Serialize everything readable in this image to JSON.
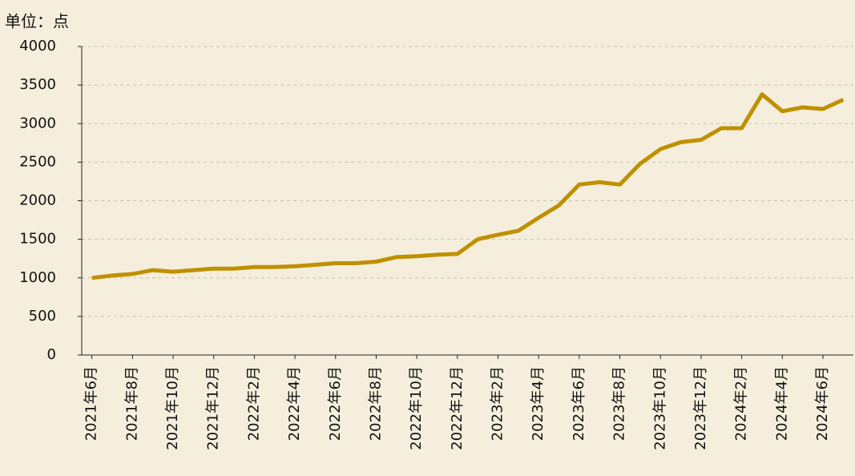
{
  "chart_data": {
    "type": "line",
    "unit_label": "单位：点",
    "categories": [
      "2021年6月",
      null,
      "2021年8月",
      null,
      "2021年10月",
      null,
      "2021年12月",
      null,
      "2022年2月",
      null,
      "2022年4月",
      null,
      "2022年6月",
      null,
      "2022年8月",
      null,
      "2022年10月",
      null,
      "2022年12月",
      null,
      "2023年2月",
      null,
      "2023年4月",
      null,
      "2023年6月",
      null,
      "2023年8月",
      null,
      "2023年10月",
      null,
      "2023年12月",
      null,
      "2024年2月",
      null,
      "2024年4月",
      null,
      "2024年6月",
      null
    ],
    "values": [
      1000,
      1030,
      1050,
      1100,
      1080,
      1100,
      1120,
      1120,
      1140,
      1140,
      1150,
      1170,
      1190,
      1190,
      1210,
      1270,
      1280,
      1300,
      1310,
      1500,
      1560,
      1610,
      1780,
      1940,
      2210,
      2240,
      2210,
      2480,
      2670,
      2760,
      2790,
      2940,
      2940,
      3380,
      3160,
      3210,
      3190,
      3310
    ],
    "color": "#bf9000",
    "ylim": [
      0,
      4000
    ],
    "yticks": [
      0,
      500,
      1000,
      1500,
      2000,
      2500,
      3000,
      3500,
      4000
    ],
    "grid": true
  }
}
